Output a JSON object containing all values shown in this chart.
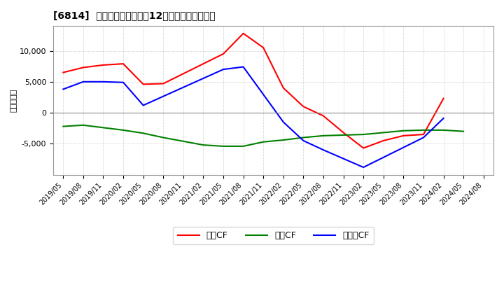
{
  "title": "[6814]  キャッシュフローの12か月移動合計の推移",
  "ylabel": "（百万円）",
  "x_labels": [
    "2019/05",
    "2019/08",
    "2019/11",
    "2020/02",
    "2020/05",
    "2020/08",
    "2020/11",
    "2021/02",
    "2021/05",
    "2021/08",
    "2021/11",
    "2022/02",
    "2022/05",
    "2022/08",
    "2022/11",
    "2023/02",
    "2023/05",
    "2023/08",
    "2023/11",
    "2024/02",
    "2024/05",
    "2024/08"
  ],
  "operating_cf_data": [
    [
      0,
      6500
    ],
    [
      1,
      7300
    ],
    [
      2,
      7700
    ],
    [
      3,
      7900
    ],
    [
      4,
      4600
    ],
    [
      5,
      4700
    ],
    [
      8,
      9500
    ],
    [
      9,
      12800
    ],
    [
      10,
      10500
    ],
    [
      11,
      4000
    ],
    [
      12,
      1000
    ],
    [
      13,
      -500
    ],
    [
      14,
      -3200
    ],
    [
      15,
      -5700
    ],
    [
      16,
      -4500
    ],
    [
      17,
      -3700
    ],
    [
      18,
      -3500
    ],
    [
      19,
      2300
    ]
  ],
  "investing_cf_data": [
    [
      0,
      -2200
    ],
    [
      1,
      -2000
    ],
    [
      2,
      -2400
    ],
    [
      3,
      -2800
    ],
    [
      4,
      -3300
    ],
    [
      5,
      -4000
    ],
    [
      6,
      -4600
    ],
    [
      7,
      -5200
    ],
    [
      8,
      -5400
    ],
    [
      9,
      -5400
    ],
    [
      10,
      -4700
    ],
    [
      11,
      -4400
    ],
    [
      12,
      -4000
    ],
    [
      13,
      -3700
    ],
    [
      14,
      -3600
    ],
    [
      15,
      -3500
    ],
    [
      16,
      -3200
    ],
    [
      17,
      -2900
    ],
    [
      18,
      -2800
    ],
    [
      19,
      -2800
    ],
    [
      20,
      -3000
    ]
  ],
  "free_cf_data": [
    [
      0,
      3800
    ],
    [
      1,
      5000
    ],
    [
      2,
      5000
    ],
    [
      3,
      4900
    ],
    [
      4,
      1200
    ],
    [
      8,
      7000
    ],
    [
      9,
      7400
    ],
    [
      11,
      -1500
    ],
    [
      12,
      -4500
    ],
    [
      13,
      -6000
    ],
    [
      14,
      -7400
    ],
    [
      15,
      -8800
    ],
    [
      18,
      -4000
    ],
    [
      19,
      -900
    ]
  ],
  "ylim": [
    -10000,
    14000
  ],
  "yticks": [
    -5000,
    0,
    5000,
    10000
  ],
  "operating_color": "#ff0000",
  "investing_color": "#008000",
  "free_color": "#0000ff",
  "bg_color": "#ffffff",
  "plot_bg_color": "#ffffff",
  "grid_color": "#aaaaaa",
  "legend_labels": [
    "営業CF",
    "投資CF",
    "フリーCF"
  ]
}
